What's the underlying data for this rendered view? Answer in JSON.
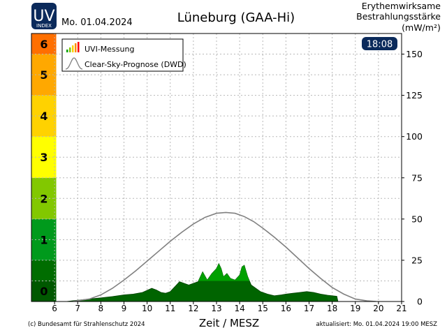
{
  "header": {
    "logo_main": "UV",
    "logo_sub": "INDEX",
    "date": "Mo. 01.04.2024",
    "station": "Lüneburg (GAA-Hi)",
    "unit_line1": "Erythemwirksame",
    "unit_line2": "Bestrahlungsstärke",
    "unit_line3": "(mW/m²)",
    "time_badge": "18:08"
  },
  "footer": {
    "copyright": "(c) Bundesamt für Strahlenschutz 2024",
    "updated": "aktualisiert: Mo. 01.04.2024  19:00  MESZ"
  },
  "colors": {
    "badge": "#0b2a5b",
    "logo": "#0b2a5b",
    "clear_sky": "#808080",
    "measurement_low": "#006400",
    "measurement_high": "#00a000"
  },
  "chart_data": {
    "type": "area",
    "xlabel": "Zeit / MESZ",
    "xlim": [
      5,
      21
    ],
    "xticks": [
      6,
      7,
      8,
      9,
      10,
      11,
      12,
      13,
      14,
      15,
      16,
      17,
      18,
      19,
      20,
      21
    ],
    "ylim": [
      0,
      162.5
    ],
    "yticks": [
      0,
      25,
      50,
      75,
      100,
      125,
      150
    ],
    "grid": true,
    "legend_position": "top-left",
    "legend": [
      "UVI-Messung",
      "Clear-Sky-Prognose (DWD)"
    ],
    "uvi_scale": [
      {
        "label": "0",
        "from": 0,
        "to": 12.5,
        "color": "#005800"
      },
      {
        "label": "",
        "from": 12.5,
        "to": 25,
        "color": "#006d00"
      },
      {
        "label": "1",
        "from": 25,
        "to": 50,
        "color": "#009a1c"
      },
      {
        "label": "2",
        "from": 50,
        "to": 75,
        "color": "#82c800"
      },
      {
        "label": "3",
        "from": 75,
        "to": 100,
        "color": "#ffff00"
      },
      {
        "label": "4",
        "from": 100,
        "to": 125,
        "color": "#ffd200"
      },
      {
        "label": "5",
        "from": 125,
        "to": 150,
        "color": "#ffa800"
      },
      {
        "label": "6",
        "from": 150,
        "to": 162.5,
        "color": "#ff6f00"
      }
    ],
    "series": [
      {
        "name": "Clear-Sky-Prognose (DWD)",
        "x": [
          6.8,
          7.0,
          7.5,
          8.0,
          8.5,
          9.0,
          9.5,
          10.0,
          10.5,
          11.0,
          11.5,
          12.0,
          12.5,
          13.0,
          13.4,
          13.8,
          14.2,
          14.6,
          15.0,
          15.5,
          16.0,
          16.5,
          17.0,
          17.5,
          18.0,
          18.5,
          19.0,
          19.5,
          19.9
        ],
        "y": [
          0,
          0.5,
          1.5,
          4,
          8,
          13,
          18.5,
          24.5,
          30.5,
          36.5,
          42,
          47,
          51,
          53.5,
          54,
          53.5,
          51.5,
          48.5,
          44.5,
          39,
          33,
          26.5,
          20,
          14,
          8.5,
          4.5,
          1.5,
          0.4,
          0
        ]
      },
      {
        "name": "UVI-Messung",
        "x": [
          6.5,
          7.0,
          7.5,
          8.0,
          8.5,
          9.0,
          9.4,
          9.8,
          10.2,
          10.4,
          10.6,
          10.8,
          11.0,
          11.2,
          11.4,
          11.6,
          11.8,
          12.0,
          12.2,
          12.4,
          12.6,
          12.8,
          13.0,
          13.1,
          13.2,
          13.3,
          13.45,
          13.6,
          13.8,
          14.0,
          14.1,
          14.2,
          14.35,
          14.5,
          14.7,
          14.9,
          15.2,
          15.5,
          15.8,
          16.0,
          16.3,
          16.6,
          16.9,
          17.2,
          17.5,
          17.8,
          18.0,
          18.2,
          18.25
        ],
        "y": [
          0,
          0.8,
          1.5,
          2.2,
          3,
          4,
          4.5,
          5.5,
          8,
          7,
          5.5,
          5,
          6,
          9,
          12,
          11,
          10,
          11,
          12,
          18,
          13,
          17,
          20,
          23,
          20,
          15,
          17,
          14,
          13,
          16,
          21,
          22,
          15,
          10,
          8,
          6,
          4.5,
          3.5,
          4,
          4.5,
          5,
          5.5,
          6,
          5.5,
          4.5,
          3.8,
          3.5,
          3.2,
          0
        ]
      }
    ]
  }
}
